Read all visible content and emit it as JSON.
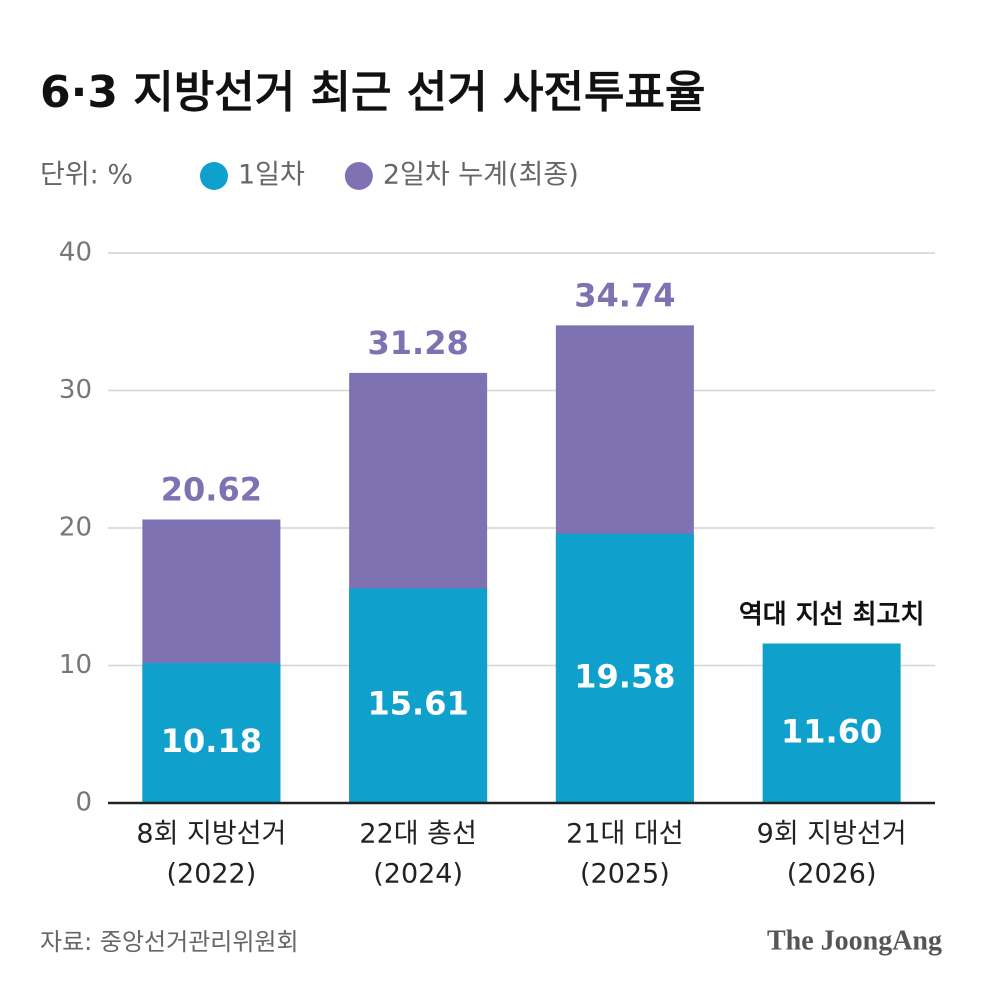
{
  "chart_data": {
    "type": "bar",
    "mode": "overlay",
    "title": "6·3 지방선거 최근 선거 사전투표율",
    "subtitle": "단위: %",
    "categories": [
      [
        "8회 지방선거",
        "(2022)"
      ],
      [
        "22대 총선",
        "(2024)"
      ],
      [
        "21대 대선",
        "(2025)"
      ],
      [
        "9회 지방선거",
        "(2026)"
      ]
    ],
    "series": [
      {
        "name": "2일차 누계(최종)",
        "color": "#7e72b2",
        "values": [
          20.62,
          31.28,
          34.74,
          null
        ],
        "value_labels": [
          "20.62",
          "31.28",
          "34.74",
          null
        ]
      },
      {
        "name": "1일차",
        "color": "#0fa1cb",
        "values": [
          10.18,
          15.61,
          19.58,
          11.6
        ],
        "value_labels": [
          "10.18",
          "15.61",
          "19.58",
          "11.60"
        ]
      }
    ],
    "legend_order": [
      1,
      0
    ],
    "annotation": "역대 지선 최고치",
    "ylim": [
      0,
      40
    ],
    "yticks": [
      0,
      10,
      20,
      30,
      40
    ],
    "grid": true,
    "source": "자료: 중앙선거관리위원회",
    "brand": "The JoongAng"
  }
}
